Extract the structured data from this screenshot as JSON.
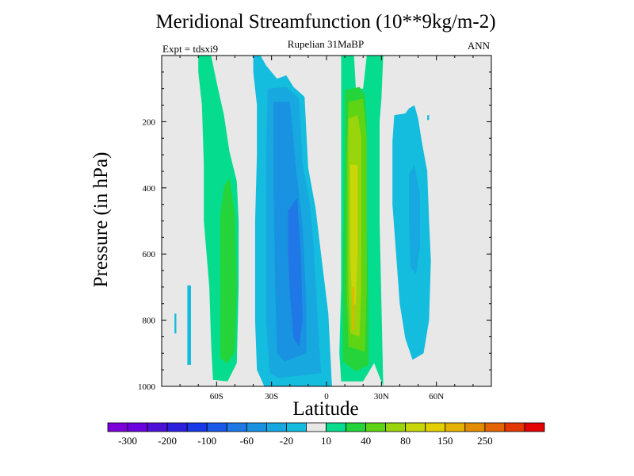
{
  "chart_data": {
    "type": "contour",
    "title": "Meridional Streamfunction (10**9kg/m-2)",
    "subtitle": "Rupelian  31MaBP",
    "left_label": "Expt = tdsxi9",
    "right_label": "ANN",
    "xlabel": "Latitude",
    "ylabel": "Pressure (in hPa)",
    "xlim": [
      -90,
      90
    ],
    "ylim": [
      1000,
      0
    ],
    "x_ticks": [
      {
        "value": -60,
        "label": "60S"
      },
      {
        "value": -30,
        "label": "30S"
      },
      {
        "value": 0,
        "label": "0"
      },
      {
        "value": 30,
        "label": "30N"
      },
      {
        "value": 60,
        "label": "60N"
      }
    ],
    "y_ticks": [
      {
        "value": 200,
        "label": "200"
      },
      {
        "value": 400,
        "label": "400"
      },
      {
        "value": 600,
        "label": "600"
      },
      {
        "value": 800,
        "label": "800"
      },
      {
        "value": 1000,
        "label": "1000"
      }
    ],
    "colorbar": {
      "colors": [
        "#7b00d9",
        "#6a00e0",
        "#4d10d8",
        "#2d1ee0",
        "#1638e8",
        "#1a58e8",
        "#1f78e6",
        "#1a92e2",
        "#17a8e0",
        "#14bcde",
        "#e8e8e8",
        "#05dc8e",
        "#24d43a",
        "#5ed414",
        "#9ad40c",
        "#c8d60a",
        "#e2d000",
        "#e4b200",
        "#e48c00",
        "#e46400",
        "#e43600",
        "#e40000"
      ],
      "labels": [
        {
          "boundary": 1,
          "text": "-300"
        },
        {
          "boundary": 3,
          "text": "-200"
        },
        {
          "boundary": 5,
          "text": "-100"
        },
        {
          "boundary": 7,
          "text": "-60"
        },
        {
          "boundary": 9,
          "text": "-20"
        },
        {
          "boundary": 11,
          "text": "10"
        },
        {
          "boundary": 13,
          "text": "40"
        },
        {
          "boundary": 15,
          "text": "80"
        },
        {
          "boundary": 17,
          "text": "150"
        },
        {
          "boundary": 19,
          "text": "250"
        }
      ]
    },
    "background": "#e8e8e8",
    "regions": [
      {
        "name": "sh-outer-cell",
        "fill": "#05dc8e",
        "poly": [
          [
            -70,
            0
          ],
          [
            -63,
            0
          ],
          [
            -60,
            80
          ],
          [
            -56,
            180
          ],
          [
            -53,
            290
          ],
          [
            -49,
            380
          ],
          [
            -48,
            500
          ],
          [
            -48,
            700
          ],
          [
            -49,
            930
          ],
          [
            -54,
            985
          ],
          [
            -62,
            980
          ],
          [
            -63,
            870
          ],
          [
            -64,
            700
          ],
          [
            -67,
            500
          ],
          [
            -67,
            330
          ],
          [
            -68,
            150
          ],
          [
            -70,
            50
          ]
        ]
      },
      {
        "name": "sh-outer-core",
        "fill": "#24d43a",
        "poly": [
          [
            -56,
            395
          ],
          [
            -53,
            370
          ],
          [
            -50,
            480
          ],
          [
            -49,
            700
          ],
          [
            -50,
            895
          ],
          [
            -54,
            930
          ],
          [
            -58,
            915
          ],
          [
            -58,
            700
          ],
          [
            -58,
            480
          ]
        ]
      },
      {
        "name": "sh-small-1",
        "fill": "#14bcde",
        "poly": [
          [
            -76,
            695
          ],
          [
            -74,
            695
          ],
          [
            -74,
            935
          ],
          [
            -76,
            935
          ]
        ]
      },
      {
        "name": "sh-small-2",
        "fill": "#14bcde",
        "poly": [
          [
            -83,
            780
          ],
          [
            -82,
            780
          ],
          [
            -82,
            840
          ],
          [
            -83,
            840
          ]
        ]
      },
      {
        "name": "sh-hadley-l0",
        "fill": "#14bcde",
        "poly": [
          [
            -40,
            0
          ],
          [
            -36,
            0
          ],
          [
            -33,
            30
          ],
          [
            -27,
            70
          ],
          [
            -22,
            60
          ],
          [
            -18,
            95
          ],
          [
            -12,
            125
          ],
          [
            -10,
            340
          ],
          [
            -6,
            460
          ],
          [
            -3,
            600
          ],
          [
            1,
            780
          ],
          [
            3,
            1000
          ],
          [
            -34,
            1000
          ],
          [
            -38,
            950
          ],
          [
            -39,
            800
          ],
          [
            -39,
            500
          ],
          [
            -38,
            300
          ],
          [
            -38,
            150
          ],
          [
            -40,
            50
          ]
        ]
      },
      {
        "name": "sh-hadley-l1",
        "fill": "#17a8e0",
        "poly": [
          [
            -32,
            100
          ],
          [
            -22,
            95
          ],
          [
            -15,
            130
          ],
          [
            -13,
            330
          ],
          [
            -9,
            450
          ],
          [
            -7,
            580
          ],
          [
            -5,
            780
          ],
          [
            -3,
            960
          ],
          [
            -26,
            975
          ],
          [
            -31,
            960
          ],
          [
            -33,
            800
          ],
          [
            -33,
            500
          ],
          [
            -33,
            300
          ]
        ]
      },
      {
        "name": "sh-hadley-l2",
        "fill": "#1a92e2",
        "poly": [
          [
            -29,
            140
          ],
          [
            -20,
            140
          ],
          [
            -17,
            320
          ],
          [
            -13,
            520
          ],
          [
            -11,
            750
          ],
          [
            -11,
            900
          ],
          [
            -23,
            925
          ],
          [
            -27,
            900
          ],
          [
            -28,
            700
          ],
          [
            -29,
            400
          ]
        ]
      },
      {
        "name": "sh-hadley-l3",
        "fill": "#1f78e6",
        "poly": [
          [
            -21,
            470
          ],
          [
            -16,
            430
          ],
          [
            -14,
            600
          ],
          [
            -13,
            800
          ],
          [
            -15,
            880
          ],
          [
            -18,
            855
          ],
          [
            -20,
            720
          ],
          [
            -21,
            600
          ]
        ]
      },
      {
        "name": "nh-hadley-l0",
        "fill": "#05dc8e",
        "poly": [
          [
            8,
            0
          ],
          [
            15,
            0
          ],
          [
            16,
            100
          ],
          [
            20,
            100
          ],
          [
            22,
            0
          ],
          [
            31,
            0
          ],
          [
            30,
            130
          ],
          [
            29,
            200
          ],
          [
            29,
            500
          ],
          [
            31,
            1000
          ],
          [
            26,
            930
          ],
          [
            20,
            985
          ],
          [
            8,
            985
          ],
          [
            7,
            900
          ],
          [
            8,
            700
          ],
          [
            8,
            200
          ]
        ]
      },
      {
        "name": "nh-hadley-l1",
        "fill": "#24d43a",
        "poly": [
          [
            10,
            105
          ],
          [
            18,
            95
          ],
          [
            21,
            120
          ],
          [
            22,
            200
          ],
          [
            22,
            500
          ],
          [
            23,
            800
          ],
          [
            23,
            935
          ],
          [
            16,
            955
          ],
          [
            9,
            925
          ],
          [
            9,
            700
          ],
          [
            10,
            250
          ]
        ]
      },
      {
        "name": "nh-hadley-l2",
        "fill": "#5ed414",
        "poly": [
          [
            12,
            140
          ],
          [
            20,
            130
          ],
          [
            22,
            250
          ],
          [
            22,
            700
          ],
          [
            21,
            895
          ],
          [
            12,
            880
          ],
          [
            11,
            700
          ],
          [
            11,
            300
          ]
        ]
      },
      {
        "name": "nh-hadley-l3",
        "fill": "#9ad40c",
        "poly": [
          [
            12,
            190
          ],
          [
            17,
            180
          ],
          [
            19,
            250
          ],
          [
            19,
            700
          ],
          [
            18,
            850
          ],
          [
            13,
            840
          ],
          [
            12,
            700
          ],
          [
            12,
            300
          ]
        ]
      },
      {
        "name": "nh-hadley-l4",
        "fill": "#c8d60a",
        "poly": [
          [
            13,
            330
          ],
          [
            17,
            330
          ],
          [
            17,
            600
          ],
          [
            16,
            750
          ],
          [
            14,
            760
          ],
          [
            13,
            600
          ]
        ]
      },
      {
        "name": "nh-hadley-l5",
        "fill": "#e4b200",
        "poly": [
          [
            14,
            700
          ],
          [
            15,
            700
          ],
          [
            15,
            830
          ],
          [
            14,
            830
          ]
        ]
      },
      {
        "name": "nh-ferrel-l0",
        "fill": "#14bcde",
        "poly": [
          [
            36,
            260
          ],
          [
            37,
            180
          ],
          [
            43,
            175
          ],
          [
            45,
            160
          ],
          [
            48,
            150
          ],
          [
            50,
            190
          ],
          [
            52,
            260
          ],
          [
            55,
            350
          ],
          [
            56,
            500
          ],
          [
            57,
            620
          ],
          [
            56,
            800
          ],
          [
            53,
            900
          ],
          [
            47,
            920
          ],
          [
            43,
            855
          ],
          [
            40,
            750
          ],
          [
            38,
            600
          ],
          [
            36,
            450
          ]
        ]
      },
      {
        "name": "nh-ferrel-l1",
        "fill": "#17a8e0",
        "poly": [
          [
            45,
            360
          ],
          [
            48,
            330
          ],
          [
            51,
            420
          ],
          [
            51,
            580
          ],
          [
            49,
            660
          ],
          [
            46,
            640
          ],
          [
            45,
            500
          ]
        ]
      },
      {
        "name": "nh-small",
        "fill": "#14bcde",
        "poly": [
          [
            55,
            180
          ],
          [
            56,
            180
          ],
          [
            56,
            195
          ],
          [
            55,
            195
          ]
        ]
      }
    ]
  }
}
